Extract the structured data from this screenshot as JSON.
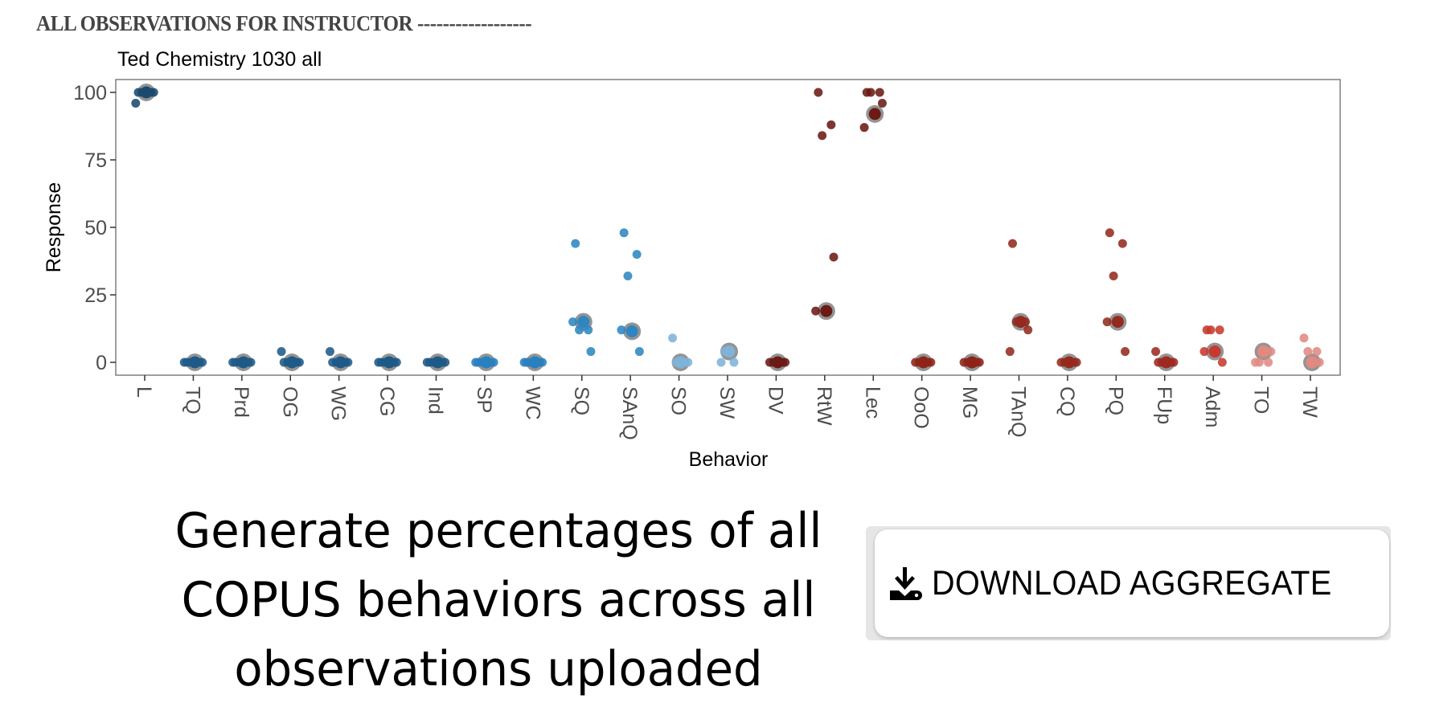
{
  "header": {
    "title": "ALL OBSERVATIONS FOR INSTRUCTOR ------------------"
  },
  "chart_data": {
    "type": "scatter",
    "title": "Ted Chemistry 1030 all",
    "xlabel": "Behavior",
    "ylabel": "Response",
    "ylim": [
      -4,
      104
    ],
    "yticks": [
      "0",
      "25",
      "50",
      "75",
      "100"
    ],
    "ytick_values": [
      0,
      25,
      50,
      75,
      100
    ],
    "grid": false,
    "legend": "none",
    "categories": [
      "L",
      "TQ",
      "Prd",
      "OG",
      "WG",
      "CG",
      "Ind",
      "SP",
      "WC",
      "SQ",
      "SAnQ",
      "SO",
      "SW",
      "DV",
      "RtW",
      "Lec",
      "OoO",
      "MG",
      "TAnQ",
      "CQ",
      "PQ",
      "FUp",
      "Adm",
      "TO",
      "TW"
    ],
    "colors": [
      "#1a4a6e",
      "#1f5a87",
      "#1f5a87",
      "#1f5a87",
      "#1f5a87",
      "#1f5a87",
      "#1f5a87",
      "#2980c0",
      "#2980c0",
      "#2e86c1",
      "#2e86c1",
      "#7fb3d9",
      "#7fb3d9",
      "#6b1a14",
      "#6b1a14",
      "#6b1a14",
      "#8e2419",
      "#8e2419",
      "#942a1f",
      "#942a1f",
      "#942a1f",
      "#9e2a22",
      "#c63a2f",
      "#e08a82",
      "#e08a82"
    ],
    "mean_ring_color": "#888888",
    "series": [
      {
        "category": "L",
        "points": [
          100,
          100,
          100,
          100,
          96
        ],
        "mean": 100
      },
      {
        "category": "TQ",
        "points": [
          0,
          0,
          0,
          0,
          0
        ],
        "mean": 0
      },
      {
        "category": "Prd",
        "points": [
          0,
          0,
          0,
          0,
          0
        ],
        "mean": 0
      },
      {
        "category": "OG",
        "points": [
          0,
          0,
          0,
          0,
          4
        ],
        "mean": 0
      },
      {
        "category": "WG",
        "points": [
          0,
          0,
          0,
          0,
          4
        ],
        "mean": 0
      },
      {
        "category": "CG",
        "points": [
          0,
          0,
          0,
          0,
          0
        ],
        "mean": 0
      },
      {
        "category": "Ind",
        "points": [
          0,
          0,
          0,
          0,
          0
        ],
        "mean": 0
      },
      {
        "category": "SP",
        "points": [
          0,
          0,
          0,
          0,
          0
        ],
        "mean": 0
      },
      {
        "category": "WC",
        "points": [
          0,
          0,
          0,
          0,
          0
        ],
        "mean": 0
      },
      {
        "category": "SQ",
        "points": [
          44,
          12,
          12,
          4,
          15
        ],
        "mean": 15
      },
      {
        "category": "SAnQ",
        "points": [
          48,
          40,
          32,
          4,
          12
        ],
        "mean": 11.5
      },
      {
        "category": "SO",
        "points": [
          9,
          0,
          0,
          0
        ],
        "mean": 0
      },
      {
        "category": "SW",
        "points": [
          0,
          0,
          4
        ],
        "mean": 4
      },
      {
        "category": "DV",
        "points": [
          0,
          0,
          0,
          0
        ],
        "mean": 0
      },
      {
        "category": "RtW",
        "points": [
          100,
          88,
          84,
          39,
          19
        ],
        "mean": 19
      },
      {
        "category": "Lec",
        "points": [
          100,
          100,
          100,
          96,
          87
        ],
        "mean": 92
      },
      {
        "category": "OoO",
        "points": [
          0,
          0,
          0,
          0
        ],
        "mean": 0
      },
      {
        "category": "MG",
        "points": [
          0,
          0,
          0,
          0
        ],
        "mean": 0
      },
      {
        "category": "TAnQ",
        "points": [
          44,
          15,
          15,
          12,
          4
        ],
        "mean": 15
      },
      {
        "category": "CQ",
        "points": [
          0,
          0,
          0,
          0
        ],
        "mean": 0
      },
      {
        "category": "PQ",
        "points": [
          48,
          44,
          32,
          4,
          15
        ],
        "mean": 15
      },
      {
        "category": "FUp",
        "points": [
          0,
          0,
          0,
          0,
          4
        ],
        "mean": 0
      },
      {
        "category": "Adm",
        "points": [
          12,
          12,
          12,
          0,
          4
        ],
        "mean": 4
      },
      {
        "category": "TO",
        "points": [
          0,
          0,
          0,
          4
        ],
        "mean": 4
      },
      {
        "category": "TW",
        "points": [
          9,
          4,
          4,
          0
        ],
        "mean": 0
      }
    ]
  },
  "description": {
    "lines": [
      "Generate percentages of all",
      "COPUS behaviors across all",
      "observations uploaded"
    ]
  },
  "download_button": {
    "label": "DOWNLOAD AGGREGATE",
    "icon": "download-icon"
  }
}
